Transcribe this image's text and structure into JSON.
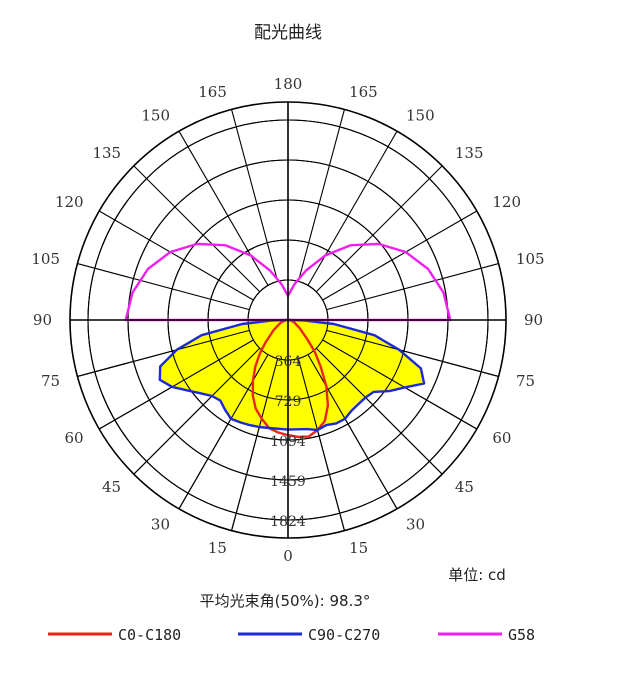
{
  "chart_data": {
    "type": "polar",
    "title": "配光曲线",
    "unit_label": "单位: cd",
    "beam_angle_label": "平均光束角(50%): 98.3°",
    "angle_labels_left": [
      "0",
      "15",
      "30",
      "45",
      "60",
      "75",
      "90",
      "105",
      "120",
      "135",
      "150",
      "165",
      "180"
    ],
    "angle_labels_right": [
      "15",
      "30",
      "45",
      "60",
      "75",
      "90",
      "105",
      "120",
      "135",
      "150",
      "165"
    ],
    "radial_labels": [
      "364",
      "729",
      "1094",
      "1459",
      "1824"
    ],
    "radial_max": 1824,
    "grid": true,
    "legend_position": "bottom",
    "series": [
      {
        "name": "C0-C180",
        "color": "#e8261c",
        "points": [
          [
            0,
            1050
          ],
          [
            5,
            1070
          ],
          [
            10,
            1080
          ],
          [
            15,
            1040
          ],
          [
            20,
            980
          ],
          [
            25,
            860
          ],
          [
            30,
            700
          ],
          [
            35,
            520
          ],
          [
            40,
            380
          ],
          [
            45,
            250
          ],
          [
            55,
            130
          ],
          [
            70,
            60
          ],
          [
            85,
            20
          ],
          [
            90,
            0
          ]
        ],
        "mirror_points": [
          [
            0,
            1050
          ],
          [
            5,
            1030
          ],
          [
            10,
            1000
          ],
          [
            15,
            930
          ],
          [
            20,
            860
          ],
          [
            25,
            760
          ],
          [
            30,
            640
          ],
          [
            35,
            520
          ],
          [
            40,
            400
          ],
          [
            45,
            290
          ],
          [
            55,
            160
          ],
          [
            70,
            70
          ],
          [
            85,
            20
          ],
          [
            90,
            0
          ]
        ]
      },
      {
        "name": "C90-C270",
        "color": "#1c2ad6",
        "fill": "#ffff00",
        "points": [
          [
            0,
            1000
          ],
          [
            10,
            1010
          ],
          [
            15,
            1040
          ],
          [
            20,
            1020
          ],
          [
            25,
            1040
          ],
          [
            30,
            1040
          ],
          [
            35,
            1010
          ],
          [
            40,
            1000
          ],
          [
            45,
            1000
          ],
          [
            50,
            1020
          ],
          [
            55,
            1130
          ],
          [
            60,
            1230
          ],
          [
            65,
            1370
          ],
          [
            70,
            1290
          ],
          [
            75,
            1050
          ],
          [
            80,
            800
          ],
          [
            85,
            420
          ],
          [
            88,
            150
          ],
          [
            90,
            0
          ]
        ],
        "mirror_points": [
          [
            0,
            1000
          ],
          [
            10,
            1000
          ],
          [
            15,
            1010
          ],
          [
            20,
            1020
          ],
          [
            25,
            1030
          ],
          [
            30,
            1040
          ],
          [
            35,
            1000
          ],
          [
            40,
            960
          ],
          [
            45,
            980
          ],
          [
            50,
            1040
          ],
          [
            55,
            1120
          ],
          [
            60,
            1220
          ],
          [
            65,
            1290
          ],
          [
            70,
            1240
          ],
          [
            75,
            1050
          ],
          [
            80,
            800
          ],
          [
            85,
            420
          ],
          [
            88,
            150
          ],
          [
            90,
            0
          ]
        ]
      },
      {
        "name": "G58",
        "color": "#f020f0",
        "points": [
          [
            90,
            1480
          ],
          [
            100,
            1440
          ],
          [
            110,
            1360
          ],
          [
            120,
            1240
          ],
          [
            130,
            1080
          ],
          [
            140,
            890
          ],
          [
            150,
            680
          ],
          [
            160,
            480
          ],
          [
            170,
            330
          ],
          [
            180,
            220
          ]
        ],
        "mirror_points": [
          [
            90,
            1480
          ],
          [
            100,
            1440
          ],
          [
            110,
            1360
          ],
          [
            120,
            1240
          ],
          [
            130,
            1080
          ],
          [
            140,
            890
          ],
          [
            150,
            680
          ],
          [
            160,
            480
          ],
          [
            170,
            330
          ],
          [
            180,
            220
          ]
        ]
      }
    ]
  }
}
